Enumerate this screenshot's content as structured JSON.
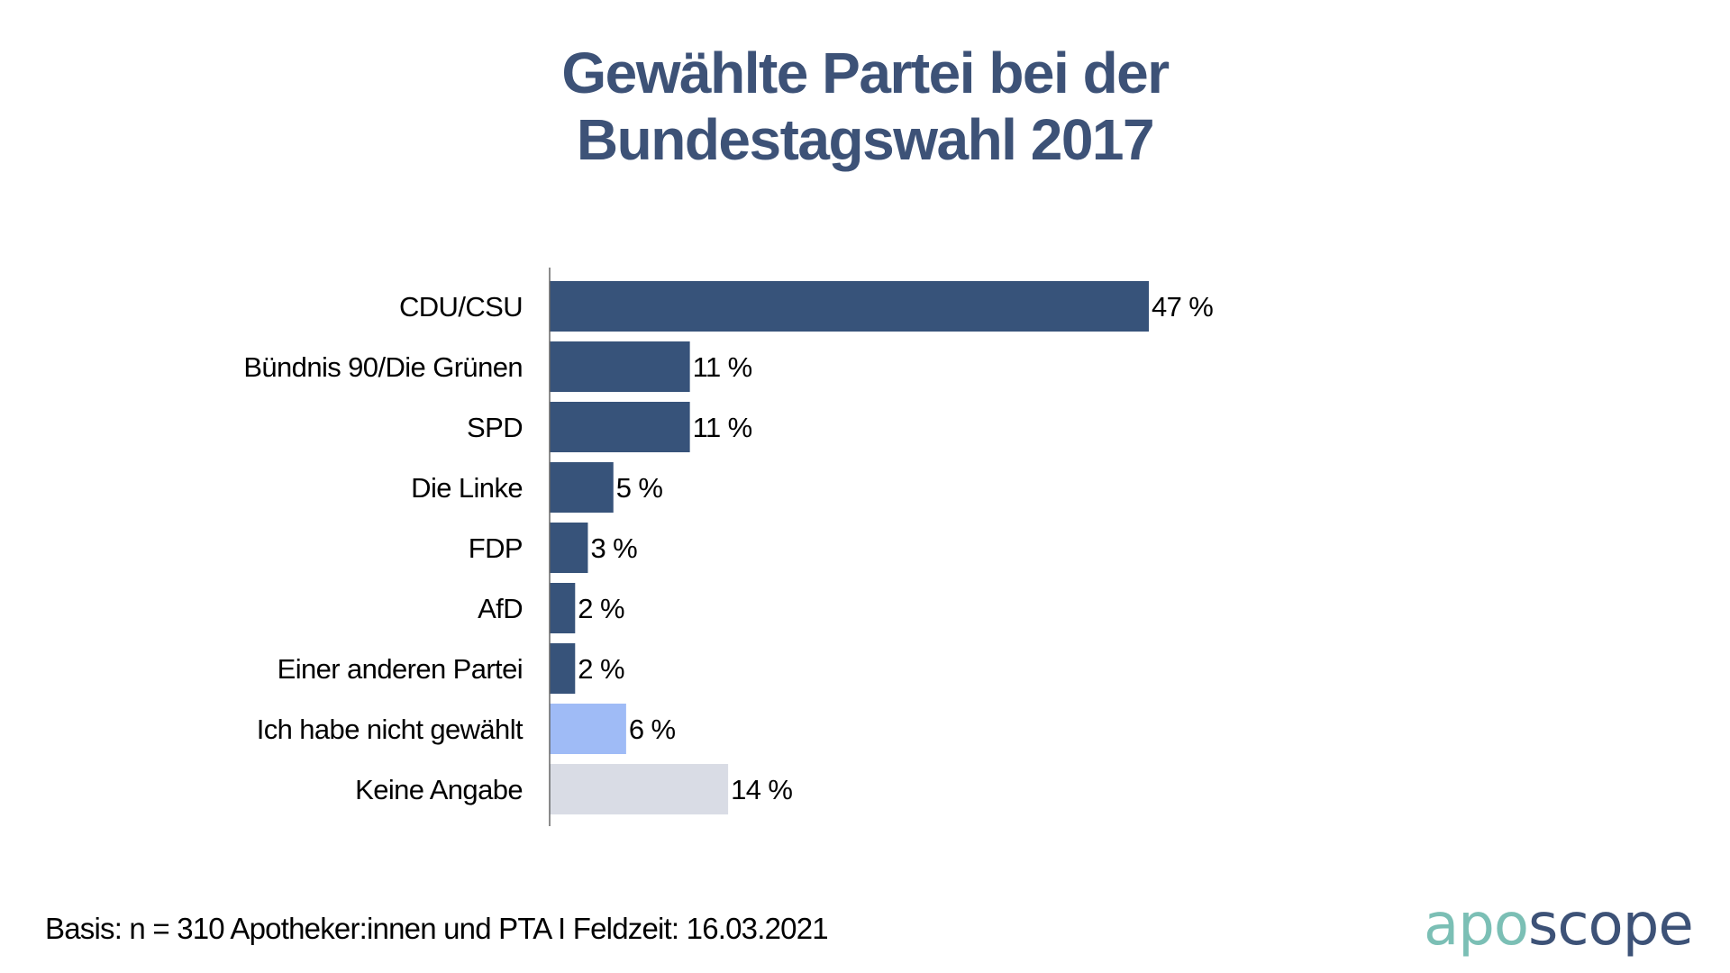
{
  "title": {
    "line1": "Gewählte Partei bei der",
    "line2": "Bundestagswahl 2017"
  },
  "footer": {
    "basis": "Basis: n = 310 Apotheker:innen und PTA I Feldzeit: 16.03.2021"
  },
  "logo": {
    "part1": "apo",
    "part2": "scope",
    "colors": {
      "part1": "#7bbfb5",
      "part2": "#3d5277"
    }
  },
  "chart_data": {
    "type": "bar",
    "orientation": "horizontal",
    "title": "Gewählte Partei bei der Bundestagswahl 2017",
    "xlabel": "",
    "ylabel": "",
    "xlim": [
      0,
      50
    ],
    "grid": false,
    "legend": "none",
    "value_suffix": " %",
    "categories": [
      "CDU/CSU",
      "Bündnis 90/Die Grünen",
      "SPD",
      "Die Linke",
      "FDP",
      "AfD",
      "Einer anderen Partei",
      "Ich habe nicht gewählt",
      "Keine Angabe"
    ],
    "values": [
      47,
      11,
      11,
      5,
      3,
      2,
      2,
      6,
      14
    ],
    "value_labels": [
      "47 %",
      "11 %",
      "11 %",
      "5 %",
      "3 %",
      "2 %",
      "2 %",
      "6 %",
      "14 %"
    ],
    "bar_colors": [
      "#37537a",
      "#37537a",
      "#37537a",
      "#37537a",
      "#37537a",
      "#37537a",
      "#37537a",
      "#9fbbf6",
      "#d9dce5"
    ],
    "axis_color": "#666666"
  }
}
